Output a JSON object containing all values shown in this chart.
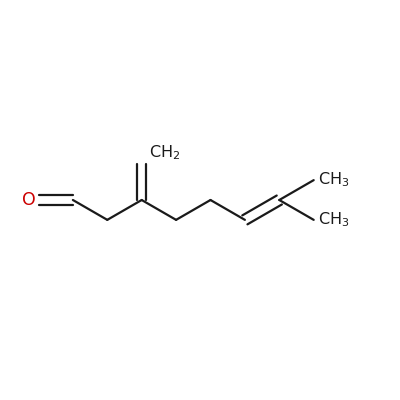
{
  "background_color": "#ffffff",
  "bond_color": "#1a1a1a",
  "oxygen_color": "#cc0000",
  "line_width": 1.6,
  "figsize": [
    4.0,
    4.0
  ],
  "dpi": 100
}
